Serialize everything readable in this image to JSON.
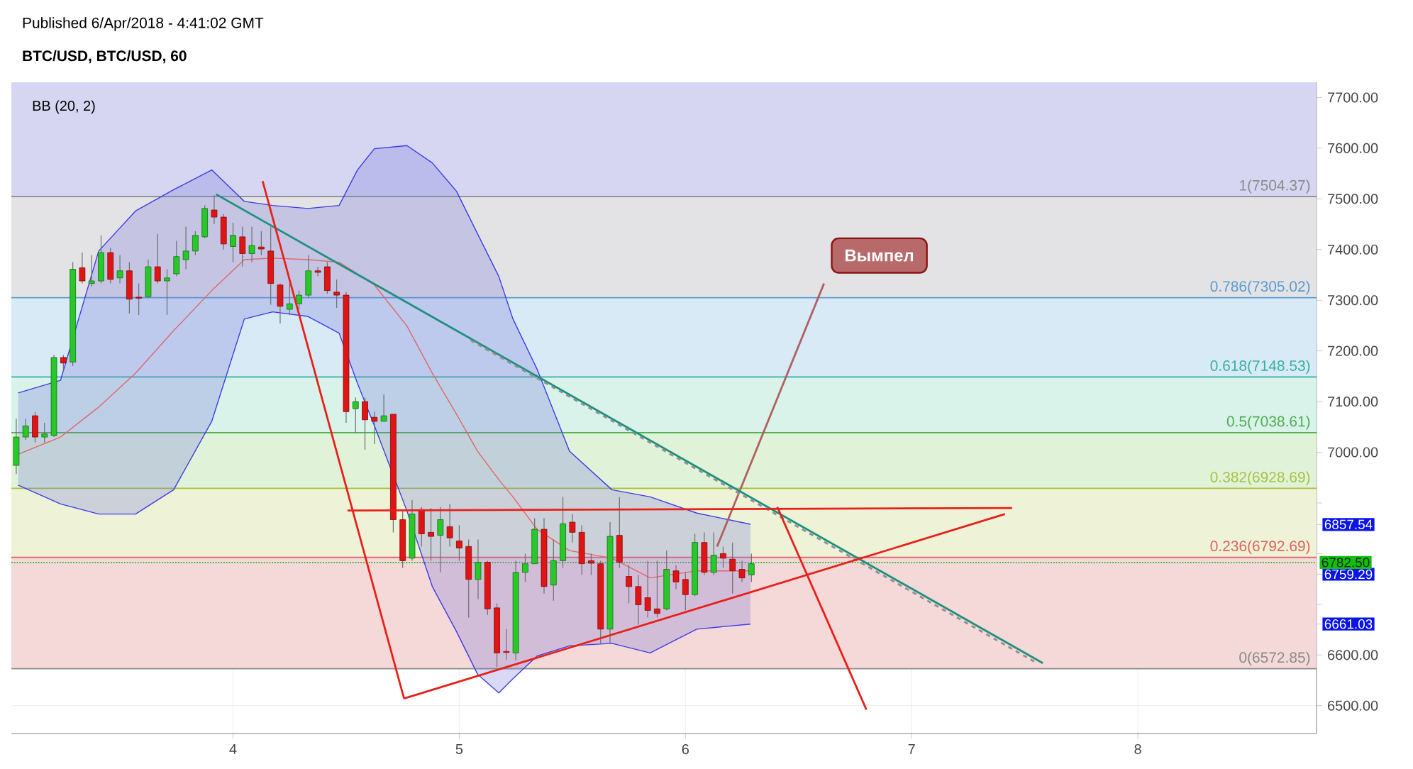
{
  "chart_data": {
    "type": "candlestick",
    "title": "Published 6/Apr/2018 - 4:41:02 GMT",
    "subtitle": "BTC/USD, BTC/USD, 60",
    "annotations": [
      "BB (20, 2)",
      "Вымпел"
    ],
    "x": [
      3.0417,
      3.0833,
      3.125,
      3.1667,
      3.2083,
      3.25,
      3.2917,
      3.3333,
      3.375,
      3.4167,
      3.4583,
      3.5,
      3.5417,
      3.5833,
      3.625,
      3.6667,
      3.7083,
      3.75,
      3.7917,
      3.8333,
      3.875,
      3.9167,
      3.9583,
      4.0,
      4.0417,
      4.0833,
      4.125,
      4.1667,
      4.2083,
      4.25,
      4.2917,
      4.3333,
      4.375,
      4.4167,
      4.4583,
      4.5,
      4.5417,
      4.5833,
      4.625,
      4.6667,
      4.7083,
      4.75,
      4.7917,
      4.8333,
      4.875,
      4.9167,
      4.9583,
      5.0,
      5.0417,
      5.0833,
      5.125,
      5.1667,
      5.2083,
      5.25,
      5.2917,
      5.3333,
      5.375,
      5.4167,
      5.4583,
      5.5,
      5.5417,
      5.5833,
      5.625,
      5.6667,
      5.7083,
      5.75,
      5.7917,
      5.8333,
      5.875,
      5.9167,
      5.9583,
      6.0,
      6.0417,
      6.0833,
      6.125,
      6.1667,
      6.2083,
      6.25,
      6.2917
    ],
    "ohlc": [
      [
        6974,
        7066,
        6957,
        7030
      ],
      [
        7030,
        7066,
        7024,
        7052
      ],
      [
        7072,
        7080,
        7019,
        7030
      ],
      [
        7030,
        7058,
        7019,
        7036
      ],
      [
        7033,
        7192,
        7030,
        7187
      ],
      [
        7187,
        7192,
        7159,
        7176
      ],
      [
        7178,
        7375,
        7170,
        7361
      ],
      [
        7364,
        7394,
        7333,
        7338
      ],
      [
        7333,
        7389,
        7327,
        7338
      ],
      [
        7338,
        7428,
        7333,
        7394
      ],
      [
        7394,
        7403,
        7333,
        7341
      ],
      [
        7344,
        7389,
        7333,
        7358
      ],
      [
        7358,
        7375,
        7274,
        7302
      ],
      [
        7306,
        7333,
        7271,
        7304
      ],
      [
        7307,
        7380,
        7305,
        7366
      ],
      [
        7366,
        7431,
        7333,
        7338
      ],
      [
        7338,
        7361,
        7271,
        7344
      ],
      [
        7352,
        7417,
        7347,
        7386
      ],
      [
        7380,
        7445,
        7361,
        7397
      ],
      [
        7397,
        7436,
        7389,
        7428
      ],
      [
        7425,
        7487,
        7422,
        7481
      ],
      [
        7478,
        7507,
        7450,
        7464
      ],
      [
        7464,
        7470,
        7400,
        7411
      ],
      [
        7406,
        7453,
        7375,
        7428
      ],
      [
        7425,
        7445,
        7366,
        7392
      ],
      [
        7392,
        7445,
        7375,
        7408
      ],
      [
        7405,
        7436,
        7389,
        7401
      ],
      [
        7397,
        7445,
        7291,
        7333
      ],
      [
        7330,
        7333,
        7254,
        7288
      ],
      [
        7282,
        7333,
        7271,
        7293
      ],
      [
        7293,
        7319,
        7282,
        7310
      ],
      [
        7310,
        7389,
        7305,
        7358
      ],
      [
        7358,
        7366,
        7347,
        7355
      ],
      [
        7366,
        7375,
        7313,
        7319
      ],
      [
        7316,
        7341,
        7285,
        7310
      ],
      [
        7310,
        7316,
        7058,
        7080
      ],
      [
        7086,
        7108,
        7038,
        7100
      ],
      [
        7100,
        7108,
        7005,
        7064
      ],
      [
        7069,
        7080,
        7016,
        7061
      ],
      [
        7061,
        7114,
        7061,
        7072
      ],
      [
        7075,
        7075,
        6842,
        6867
      ],
      [
        6867,
        6884,
        6772,
        6786
      ],
      [
        6791,
        6906,
        6786,
        6878
      ],
      [
        6887,
        6892,
        6814,
        6839
      ],
      [
        6842,
        6890,
        6786,
        6834
      ],
      [
        6836,
        6892,
        6763,
        6867
      ],
      [
        6853,
        6898,
        6814,
        6831
      ],
      [
        6825,
        6856,
        6786,
        6811
      ],
      [
        6814,
        6828,
        6674,
        6749
      ],
      [
        6749,
        6828,
        6710,
        6783
      ],
      [
        6783,
        6786,
        6679,
        6691
      ],
      [
        6693,
        6702,
        6576,
        6604
      ],
      [
        6607,
        6651,
        6590,
        6605
      ],
      [
        6604,
        6786,
        6590,
        6763
      ],
      [
        6763,
        6800,
        6744,
        6780
      ],
      [
        6780,
        6870,
        6780,
        6848
      ],
      [
        6848,
        6870,
        6721,
        6735
      ],
      [
        6738,
        6828,
        6707,
        6786
      ],
      [
        6786,
        6912,
        6772,
        6859
      ],
      [
        6862,
        6878,
        6822,
        6842
      ],
      [
        6842,
        6856,
        6758,
        6780
      ],
      [
        6786,
        6800,
        6758,
        6781
      ],
      [
        6780,
        6786,
        6623,
        6651
      ],
      [
        6651,
        6862,
        6623,
        6834
      ],
      [
        6836,
        6912,
        6772,
        6783
      ],
      [
        6755,
        6777,
        6702,
        6735
      ],
      [
        6735,
        6758,
        6660,
        6699
      ],
      [
        6713,
        6786,
        6674,
        6688
      ],
      [
        6691,
        6786,
        6674,
        6682
      ],
      [
        6691,
        6806,
        6688,
        6769
      ],
      [
        6766,
        6777,
        6730,
        6744
      ],
      [
        6749,
        6763,
        6688,
        6719
      ],
      [
        6719,
        6839,
        6716,
        6822
      ],
      [
        6822,
        6842,
        6758,
        6763
      ],
      [
        6763,
        6842,
        6758,
        6797
      ],
      [
        6800,
        6814,
        6772,
        6791
      ],
      [
        6789,
        6822,
        6721,
        6766
      ],
      [
        6769,
        6786,
        6744,
        6752
      ],
      [
        6758,
        6800,
        6744,
        6780
      ]
    ],
    "series": [
      {
        "type": "line",
        "color": "#e06666",
        "x": [
          3.05,
          3.2375,
          3.406,
          3.569,
          3.7375,
          3.906,
          4.05,
          4.175,
          4.331,
          4.469,
          4.55,
          4.625,
          4.769,
          4.881,
          4.988,
          5.081,
          5.175,
          5.2375,
          5.344,
          5.4875,
          5.675,
          5.844,
          6.05,
          6.2875
        ],
        "values": [
          6996,
          7030,
          7089,
          7156,
          7240,
          7319,
          7380,
          7383,
          7380,
          7375,
          7352,
          7330,
          7249,
          7156,
          7075,
          7002,
          6946,
          6912,
          6848,
          6806,
          6791,
          6752,
          6766,
          6766
        ],
        "lower": [
          6935,
          6898,
          6878,
          6878,
          6926,
          7061,
          7263,
          7277,
          7268,
          7235,
          7136,
          7052,
          6884,
          6735,
          6646,
          6562,
          6525,
          6553,
          6598,
          6618,
          6623,
          6604,
          6651,
          6661
        ],
        "upper": [
          7117,
          7142,
          7397,
          7476,
          7518,
          7557,
          7495,
          7487,
          7481,
          7487,
          7557,
          7599,
          7605,
          7571,
          7515,
          7431,
          7347,
          7263,
          7164,
          7002,
          6926,
          6912,
          6880,
          6858
        ]
      },
      {
        "type": "line",
        "color": "#3c3ce6",
        "x": [
          3.05,
          3.2375,
          3.406,
          3.569,
          3.7375,
          3.906,
          4.05,
          4.175,
          4.331,
          4.469,
          4.55,
          4.625,
          4.769,
          4.881,
          4.988,
          5.081,
          5.175,
          5.2375,
          5.344,
          5.4875,
          5.675,
          5.844,
          6.05,
          6.2875
        ],
        "values": [
          7117,
          7142,
          7397,
          7476,
          7518,
          7557,
          7495,
          7487,
          7481,
          7487,
          7557,
          7599,
          7605,
          7571,
          7515,
          7431,
          7347,
          7263,
          7164,
          7002,
          6926,
          6912,
          6880,
          6858
        ]
      },
      {
        "type": "line",
        "color": "#3c3ce6",
        "x": [
          3.05,
          3.2375,
          3.406,
          3.569,
          3.7375,
          3.906,
          4.05,
          4.175,
          4.331,
          4.469,
          4.55,
          4.625,
          4.769,
          4.881,
          4.988,
          5.081,
          5.175,
          5.2375,
          5.344,
          5.4875,
          5.675,
          5.844,
          6.05,
          6.2875
        ],
        "values": [
          6935,
          6898,
          6878,
          6878,
          6926,
          7061,
          7263,
          7277,
          7268,
          7235,
          7136,
          7052,
          6884,
          6735,
          6646,
          6562,
          6525,
          6553,
          6598,
          6618,
          6623,
          6604,
          6651,
          6661
        ]
      },
      {
        "type": "line",
        "color": "#b06060",
        "x": [
          6.14,
          6.6125
        ],
        "values": [
          6814,
          7333
        ]
      },
      {
        "type": "line",
        "color": "#1f8f80",
        "x": [
          3.925,
          7.58
        ],
        "values": [
          7509,
          6584
        ]
      },
      {
        "type": "line",
        "color": "#909090",
        "line_style": "dashed",
        "x": [
          5.05,
          7.55
        ],
        "values": [
          7221,
          6585
        ]
      },
      {
        "type": "line",
        "color": "#e8201a",
        "x": [
          4.131,
          4.756
        ],
        "values": [
          7535,
          6514
        ]
      },
      {
        "type": "line",
        "color": "#e8201a",
        "x": [
          4.756,
          7.4125
        ],
        "values": [
          6514,
          6878
        ]
      },
      {
        "type": "line",
        "color": "#e8201a",
        "x": [
          4.506,
          7.444
        ],
        "values": [
          6885,
          6890
        ]
      },
      {
        "type": "line",
        "color": "#e8201a",
        "x": [
          6.406,
          6.8
        ],
        "values": [
          6892,
          6492
        ]
      }
    ],
    "xlim": [
      3.02,
      8.79
    ],
    "ylim": [
      6445,
      7730
    ],
    "xticks": [
      4,
      5,
      6,
      7,
      8
    ],
    "yticks": [
      {
        "value": 6500,
        "label": "6500.00"
      },
      {
        "value": 6600,
        "label": "6600.00"
      },
      {
        "value": 6700,
        "label": null
      },
      {
        "value": 6800,
        "label": null
      },
      {
        "value": 6900,
        "label": null
      },
      {
        "value": 6857.54,
        "label": "6857.54"
      },
      {
        "value": 6759.29,
        "label": "6759.29"
      },
      {
        "value": 6661.03,
        "label": "6661.03"
      },
      {
        "value": 7000,
        "label": "7000.00"
      },
      {
        "value": 7100,
        "label": "7100.00"
      },
      {
        "value": 7200,
        "label": "7200.00"
      },
      {
        "value": 7300,
        "label": "7300.00"
      },
      {
        "value": 7400,
        "label": "7400.00"
      },
      {
        "value": 7500,
        "label": "7500.00"
      },
      {
        "value": 7600,
        "label": "7600.00"
      },
      {
        "value": 7700,
        "label": "7700.00"
      }
    ],
    "grid": true,
    "bands": [
      {
        "axis": "y",
        "from": 7504.37,
        "to": 7730,
        "color": "#d6d6f3"
      },
      {
        "axis": "y",
        "from": 7305.02,
        "to": 7504.37,
        "color": "#e3e3e6"
      },
      {
        "axis": "y",
        "from": 7148.53,
        "to": 7305.02,
        "color": "#d8eaf6"
      },
      {
        "axis": "y",
        "from": 7038.61,
        "to": 7148.53,
        "color": "#d9f2ea"
      },
      {
        "axis": "y",
        "from": 6928.69,
        "to": 7038.61,
        "color": "#e0f3d8"
      },
      {
        "axis": "y",
        "from": 6792.69,
        "to": 6928.69,
        "color": "#eef3d8"
      },
      {
        "axis": "y",
        "from": 6572.85,
        "to": 6792.69,
        "color": "#f5d8d8"
      }
    ],
    "ref_lines": [
      {
        "axis": "y",
        "value": 7504.37,
        "label": "1(7504.37)",
        "color": "#8a8a8a"
      },
      {
        "axis": "y",
        "value": 7305.02,
        "label": "0.786(7305.02)",
        "color": "#5a9ad0"
      },
      {
        "axis": "y",
        "value": 7148.53,
        "label": "0.618(7148.53)",
        "color": "#36b0a0"
      },
      {
        "axis": "y",
        "value": 7038.61,
        "label": "0.5(7038.61)",
        "color": "#4cae4c"
      },
      {
        "axis": "y",
        "value": 6928.69,
        "label": "0.382(6928.69)",
        "color": "#a8c040"
      },
      {
        "axis": "y",
        "value": 6792.69,
        "label": "0.236(6792.69)",
        "color": "#e06060"
      },
      {
        "axis": "y",
        "value": 6572.85,
        "label": "0(6572.85)",
        "color": "#8a8a8a"
      },
      {
        "axis": "y",
        "value": 6782.5,
        "label": "6782.50",
        "color": "#10c010",
        "line_style": "dotted"
      }
    ]
  }
}
